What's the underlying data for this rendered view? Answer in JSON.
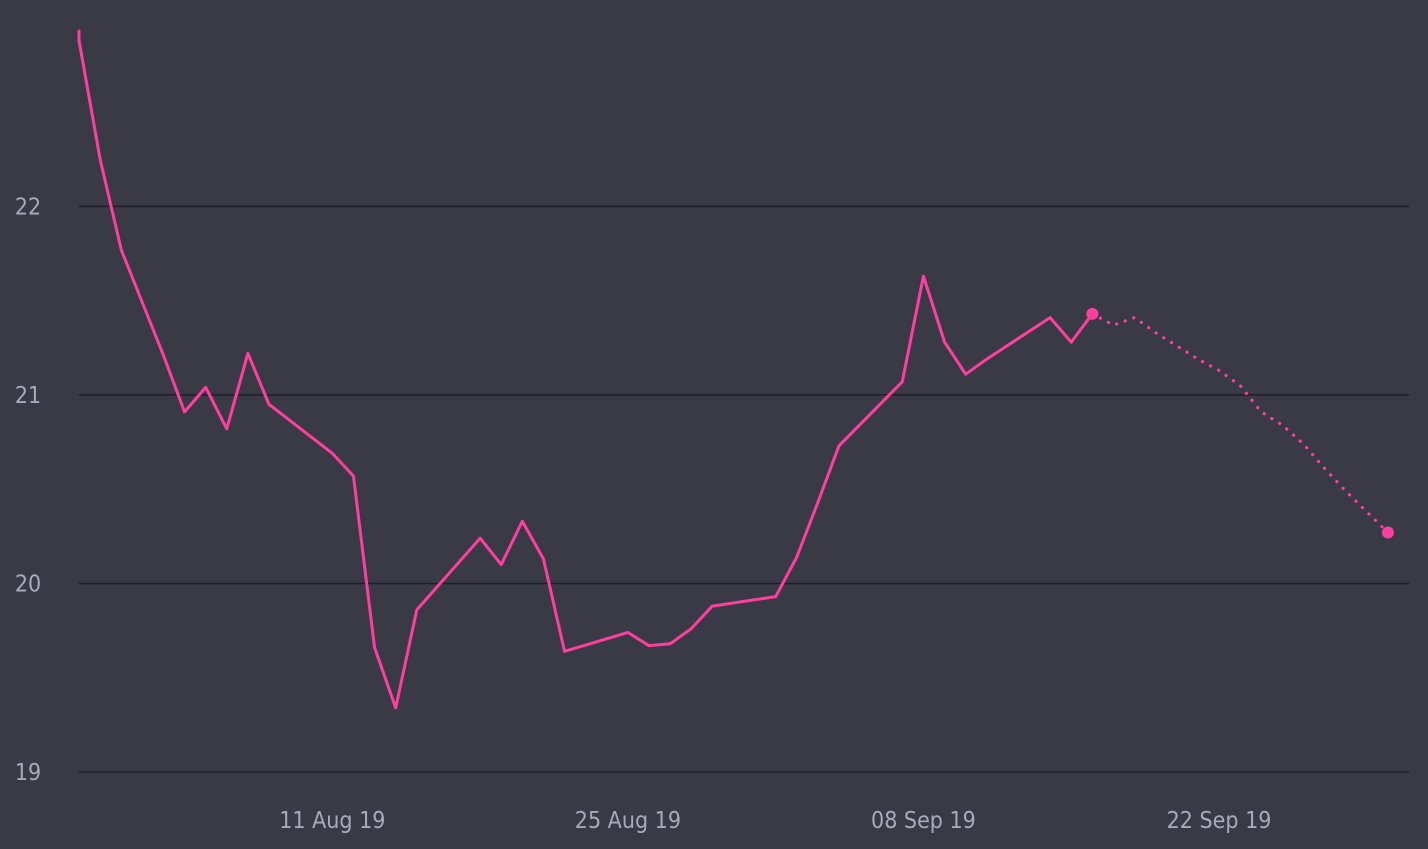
{
  "chart_data": {
    "type": "line",
    "title": "",
    "xlabel": "",
    "ylabel": "",
    "colors": {
      "background": "#3a3a46",
      "line": "#ff3f9f",
      "grid": "#1f1f27",
      "tick_text": "#a9a9bb"
    },
    "grid": true,
    "x_range": [
      "2019-07-30",
      "2019-10-01"
    ],
    "y_range": [
      19,
      22.93
    ],
    "x_ticks": [
      {
        "date": "2019-08-11",
        "label": "11 Aug 19"
      },
      {
        "date": "2019-08-25",
        "label": "25 Aug 19"
      },
      {
        "date": "2019-09-08",
        "label": "08 Sep 19"
      },
      {
        "date": "2019-09-22",
        "label": "22 Sep 19"
      }
    ],
    "y_ticks": [
      {
        "value": 19,
        "label": "19"
      },
      {
        "value": 20,
        "label": "20"
      },
      {
        "value": 21,
        "label": "21"
      },
      {
        "value": 22,
        "label": "22"
      }
    ],
    "series": [
      {
        "style": "solid",
        "points": [
          {
            "x": "2019-07-30",
            "y": 22.93
          },
          {
            "x": "2019-07-30",
            "y": 22.88
          },
          {
            "x": "2019-07-31",
            "y": 22.25
          },
          {
            "x": "2019-08-01",
            "y": 21.77
          },
          {
            "x": "2019-08-02",
            "y": 21.49
          },
          {
            "x": "2019-08-03",
            "y": 21.21
          },
          {
            "x": "2019-08-04",
            "y": 20.91
          },
          {
            "x": "2019-08-05",
            "y": 21.04
          },
          {
            "x": "2019-08-06",
            "y": 20.82
          },
          {
            "x": "2019-08-07",
            "y": 21.22
          },
          {
            "x": "2019-08-08",
            "y": 20.95
          },
          {
            "x": "2019-08-11",
            "y": 20.69
          },
          {
            "x": "2019-08-12",
            "y": 20.57
          },
          {
            "x": "2019-08-13",
            "y": 19.66
          },
          {
            "x": "2019-08-14",
            "y": 19.34
          },
          {
            "x": "2019-08-15",
            "y": 19.86
          },
          {
            "x": "2019-08-18",
            "y": 20.24
          },
          {
            "x": "2019-08-19",
            "y": 20.1
          },
          {
            "x": "2019-08-20",
            "y": 20.33
          },
          {
            "x": "2019-08-21",
            "y": 20.13
          },
          {
            "x": "2019-08-22",
            "y": 19.64
          },
          {
            "x": "2019-08-25",
            "y": 19.74
          },
          {
            "x": "2019-08-26",
            "y": 19.67
          },
          {
            "x": "2019-08-27",
            "y": 19.68
          },
          {
            "x": "2019-08-28",
            "y": 19.76
          },
          {
            "x": "2019-08-29",
            "y": 19.88
          },
          {
            "x": "2019-09-01",
            "y": 19.93
          },
          {
            "x": "2019-09-02",
            "y": 20.14
          },
          {
            "x": "2019-09-03",
            "y": 20.43
          },
          {
            "x": "2019-09-04",
            "y": 20.73
          },
          {
            "x": "2019-09-07",
            "y": 21.07
          },
          {
            "x": "2019-09-08",
            "y": 21.63
          },
          {
            "x": "2019-09-09",
            "y": 21.28
          },
          {
            "x": "2019-09-10",
            "y": 21.11
          },
          {
            "x": "2019-09-11",
            "y": 21.19
          },
          {
            "x": "2019-09-14",
            "y": 21.41
          },
          {
            "x": "2019-09-15",
            "y": 21.28
          },
          {
            "x": "2019-09-16",
            "y": 21.43
          }
        ]
      },
      {
        "style": "dotted",
        "points": [
          {
            "x": "2019-09-16",
            "y": 21.43
          },
          {
            "x": "2019-09-17",
            "y": 21.37
          },
          {
            "x": "2019-09-18",
            "y": 21.41
          },
          {
            "x": "2019-09-19",
            "y": 21.33
          },
          {
            "x": "2019-09-20",
            "y": 21.26
          },
          {
            "x": "2019-09-21",
            "y": 21.19
          },
          {
            "x": "2019-09-22",
            "y": 21.13
          },
          {
            "x": "2019-09-23",
            "y": 21.05
          },
          {
            "x": "2019-09-24",
            "y": 20.91
          },
          {
            "x": "2019-09-25",
            "y": 20.84
          },
          {
            "x": "2019-09-26",
            "y": 20.74
          },
          {
            "x": "2019-09-27",
            "y": 20.61
          },
          {
            "x": "2019-09-28",
            "y": 20.49
          },
          {
            "x": "2019-09-29",
            "y": 20.38
          },
          {
            "x": "2019-09-30",
            "y": 20.27
          }
        ]
      }
    ]
  }
}
